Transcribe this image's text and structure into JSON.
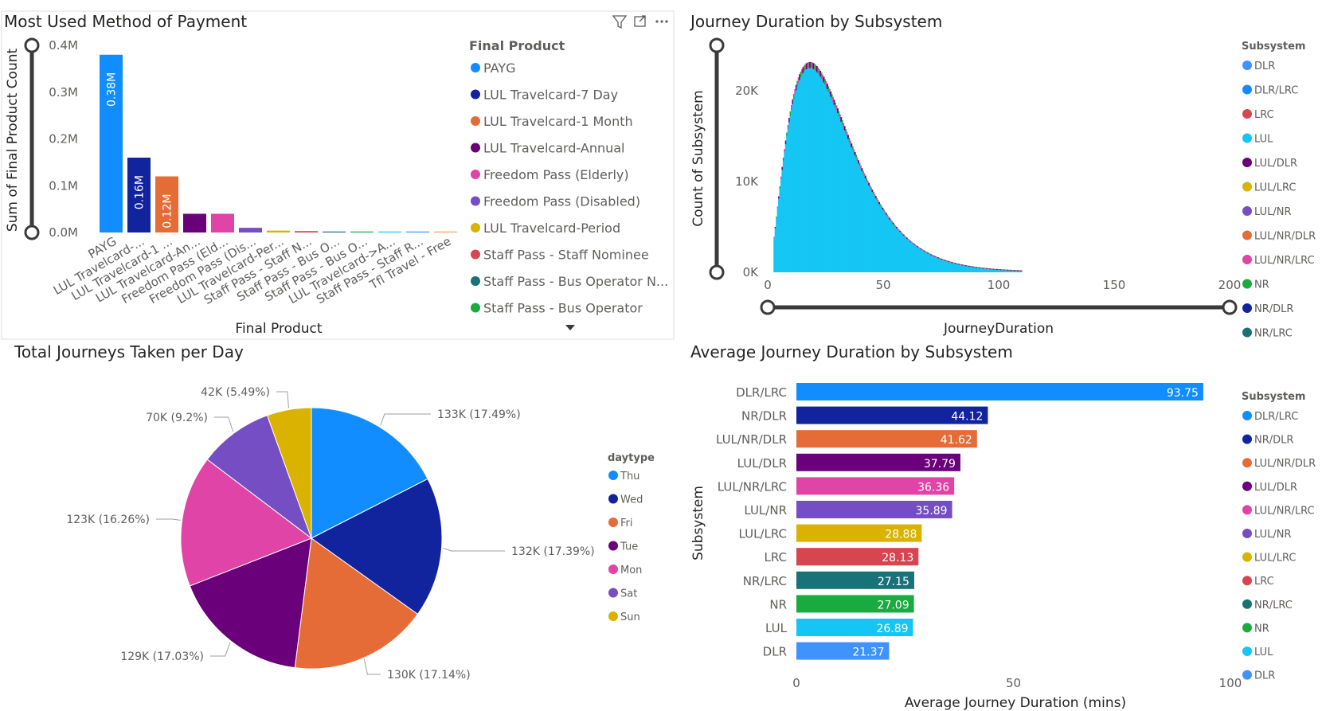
{
  "panels": {
    "payment": {
      "title": "Most Used Method of Payment",
      "xlabel": "Final Product",
      "ylabel": "Sum of Final Product Count",
      "legend_title": "Final Product"
    },
    "duration": {
      "title": "Journey Duration by Subsystem",
      "xlabel": "JourneyDuration",
      "ylabel": "Count of Subsystem",
      "legend_title": "Subsystem"
    },
    "daytype": {
      "title": "Total Journeys Taken per Day",
      "legend_title": "daytype"
    },
    "average": {
      "title": "Average Journey Duration by Subsystem",
      "xlabel": "Average Journey Duration (mins)",
      "ylabel": "Subsystem",
      "legend_title": "Subsystem"
    }
  },
  "chart_data": [
    {
      "type": "bar",
      "title": "Most Used Method of Payment",
      "xlabel": "Final Product",
      "ylabel": "Sum of Final Product Count",
      "ylim": [
        0,
        0.4
      ],
      "unit": "M",
      "yticks": [
        "0.0M",
        "0.1M",
        "0.2M",
        "0.3M",
        "0.4M"
      ],
      "categories": [
        "PAYG",
        "LUL Travelcard-...",
        "LUL Travelcard-1 ...",
        "LUL Travelcard-An...",
        "Freedom Pass (Eld...",
        "Freedom Pass (Dis...",
        "LUL Travelcard-Per...",
        "Staff Pass - Staff N...",
        "Staff Pass - Bus O...",
        "Staff Pass - Bus O...",
        "LUL Travelcard->A...",
        "Staff Pass - Staff R...",
        "Tfl Travel - Free"
      ],
      "values": [
        0.38,
        0.16,
        0.12,
        0.04,
        0.04,
        0.01,
        0.004,
        0.003,
        0.002,
        0.0015,
        0.001,
        0.0008,
        0.0005
      ],
      "data_labels": [
        "0.38M",
        "0.16M",
        "0.12M",
        "",
        "",
        "",
        "",
        "",
        "",
        "",
        "",
        "",
        ""
      ],
      "colors": [
        "#118DFF",
        "#12239E",
        "#E66C37",
        "#6B007B",
        "#E044A7",
        "#744EC2",
        "#D9B300",
        "#D64550",
        "#197278",
        "#1AAB40",
        "#15C6F4",
        "#4092FF",
        "#FFA058"
      ],
      "legend": [
        "PAYG",
        "LUL Travelcard-7 Day",
        "LUL Travelcard-1 Month",
        "LUL Travelcard-Annual",
        "Freedom Pass (Elderly)",
        "Freedom Pass (Disabled)",
        "LUL Travelcard-Period",
        "Staff Pass - Staff Nominee",
        "Staff Pass - Bus Operator N...",
        "Staff Pass - Bus Operator"
      ],
      "legend_colors": [
        "#118DFF",
        "#12239E",
        "#E66C37",
        "#6B007B",
        "#E044A7",
        "#744EC2",
        "#D9B300",
        "#D64550",
        "#197278",
        "#1AAB40"
      ],
      "grid": false
    },
    {
      "type": "bar",
      "title": "Journey Duration by Subsystem",
      "xlabel": "JourneyDuration",
      "ylabel": "Count of Subsystem",
      "xlim": [
        0,
        200
      ],
      "ylim": [
        0,
        30000
      ],
      "xticks": [
        "0",
        "50",
        "100",
        "150",
        "200"
      ],
      "yticks": [
        "0K",
        "10K",
        "20K"
      ],
      "peak": {
        "x": 18,
        "y": 22500
      },
      "dominant_series": "LUL",
      "legend": [
        "DLR",
        "DLR/LRC",
        "LRC",
        "LUL",
        "LUL/DLR",
        "LUL/LRC",
        "LUL/NR",
        "LUL/NR/DLR",
        "LUL/NR/LRC",
        "NR",
        "NR/DLR",
        "NR/LRC"
      ],
      "legend_colors": [
        "#4092FF",
        "#118DFF",
        "#D64550",
        "#15C6F4",
        "#6B007B",
        "#D9B300",
        "#744EC2",
        "#E66C37",
        "#E044A7",
        "#1AAB40",
        "#12239E",
        "#197278"
      ],
      "grid": false
    },
    {
      "type": "pie",
      "title": "Total Journeys Taken per Day",
      "categories": [
        "Thu",
        "Wed",
        "Fri",
        "Tue",
        "Mon",
        "Sat",
        "Sun"
      ],
      "values": [
        17.49,
        17.39,
        17.14,
        17.03,
        16.26,
        9.2,
        5.49
      ],
      "labels": [
        "133K (17.49%)",
        "132K (17.39%)",
        "130K (17.14%)",
        "129K (17.03%)",
        "123K (16.26%)",
        "70K (9.2%)",
        "42K (5.49%)"
      ],
      "colors": [
        "#118DFF",
        "#12239E",
        "#E66C37",
        "#6B007B",
        "#E044A7",
        "#744EC2",
        "#D9B300"
      ],
      "legend": [
        "Thu",
        "Wed",
        "Fri",
        "Tue",
        "Mon",
        "Sat",
        "Sun"
      ]
    },
    {
      "type": "bar",
      "orientation": "horizontal",
      "title": "Average Journey Duration by Subsystem",
      "xlabel": "Average Journey Duration (mins)",
      "ylabel": "Subsystem",
      "xlim": [
        0,
        100
      ],
      "xticks": [
        "0",
        "50",
        "100"
      ],
      "categories": [
        "DLR/LRC",
        "NR/DLR",
        "LUL/NR/DLR",
        "LUL/DLR",
        "LUL/NR/LRC",
        "LUL/NR",
        "LUL/LRC",
        "LRC",
        "NR/LRC",
        "NR",
        "LUL",
        "DLR"
      ],
      "values": [
        93.75,
        44.12,
        41.62,
        37.79,
        36.36,
        35.89,
        28.88,
        28.13,
        27.15,
        27.09,
        26.89,
        21.37
      ],
      "data_labels": [
        "93.75",
        "44.12",
        "41.62",
        "37.79",
        "36.36",
        "35.89",
        "28.88",
        "28.13",
        "27.15",
        "27.09",
        "26.89",
        "21.37"
      ],
      "colors": [
        "#118DFF",
        "#12239E",
        "#E66C37",
        "#6B007B",
        "#E044A7",
        "#744EC2",
        "#D9B300",
        "#D64550",
        "#197278",
        "#1AAB40",
        "#15C6F4",
        "#4092FF"
      ],
      "legend": [
        "DLR/LRC",
        "NR/DLR",
        "LUL/NR/DLR",
        "LUL/DLR",
        "LUL/NR/LRC",
        "LUL/NR",
        "LUL/LRC",
        "LRC",
        "NR/LRC",
        "NR",
        "LUL",
        "DLR"
      ],
      "grid": false
    }
  ],
  "icons": {
    "filter": "filter-icon",
    "focus": "focus-mode-icon",
    "more": "more-options-icon",
    "dropdown": "legend-scroll-down-icon"
  },
  "colors": {
    "slider": "#3b3a39",
    "border": "#e1dfdd"
  }
}
